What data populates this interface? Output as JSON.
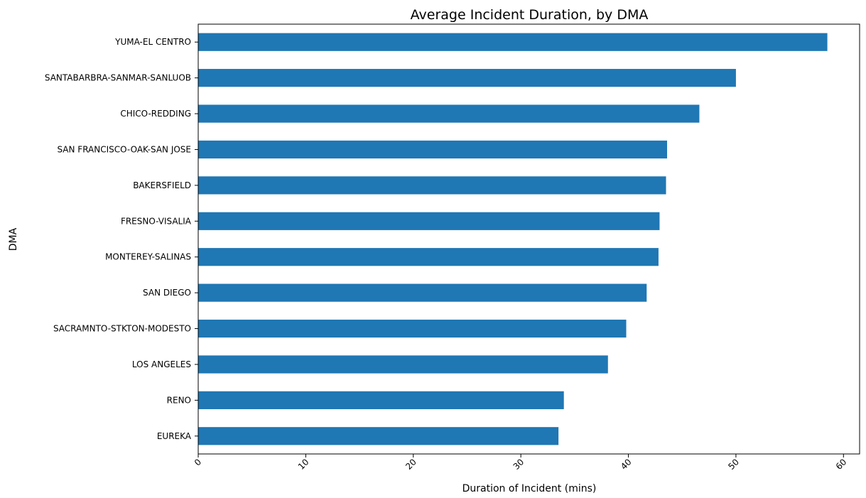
{
  "chart_data": {
    "type": "bar",
    "orientation": "horizontal",
    "title": "Average Incident Duration, by DMA",
    "xlabel": "Duration of Incident (mins)",
    "ylabel": "DMA",
    "categories": [
      "YUMA-EL CENTRO",
      "SANTABARBRA-SANMAR-SANLUOB",
      "CHICO-REDDING",
      "SAN FRANCISCO-OAK-SAN JOSE",
      "BAKERSFIELD",
      "FRESNO-VISALIA",
      "MONTEREY-SALINAS",
      "SAN DIEGO",
      "SACRAMNTO-STKTON-MODESTO",
      "LOS ANGELES",
      "RENO",
      "EUREKA"
    ],
    "values": [
      58.5,
      50.0,
      46.6,
      43.6,
      43.5,
      42.9,
      42.8,
      41.7,
      39.8,
      38.1,
      34.0,
      33.5
    ],
    "xticks": [
      0,
      10,
      20,
      30,
      40,
      50,
      60
    ],
    "xlim": [
      0,
      61.5
    ],
    "grid": false,
    "bar_color": "#1f77b4"
  }
}
